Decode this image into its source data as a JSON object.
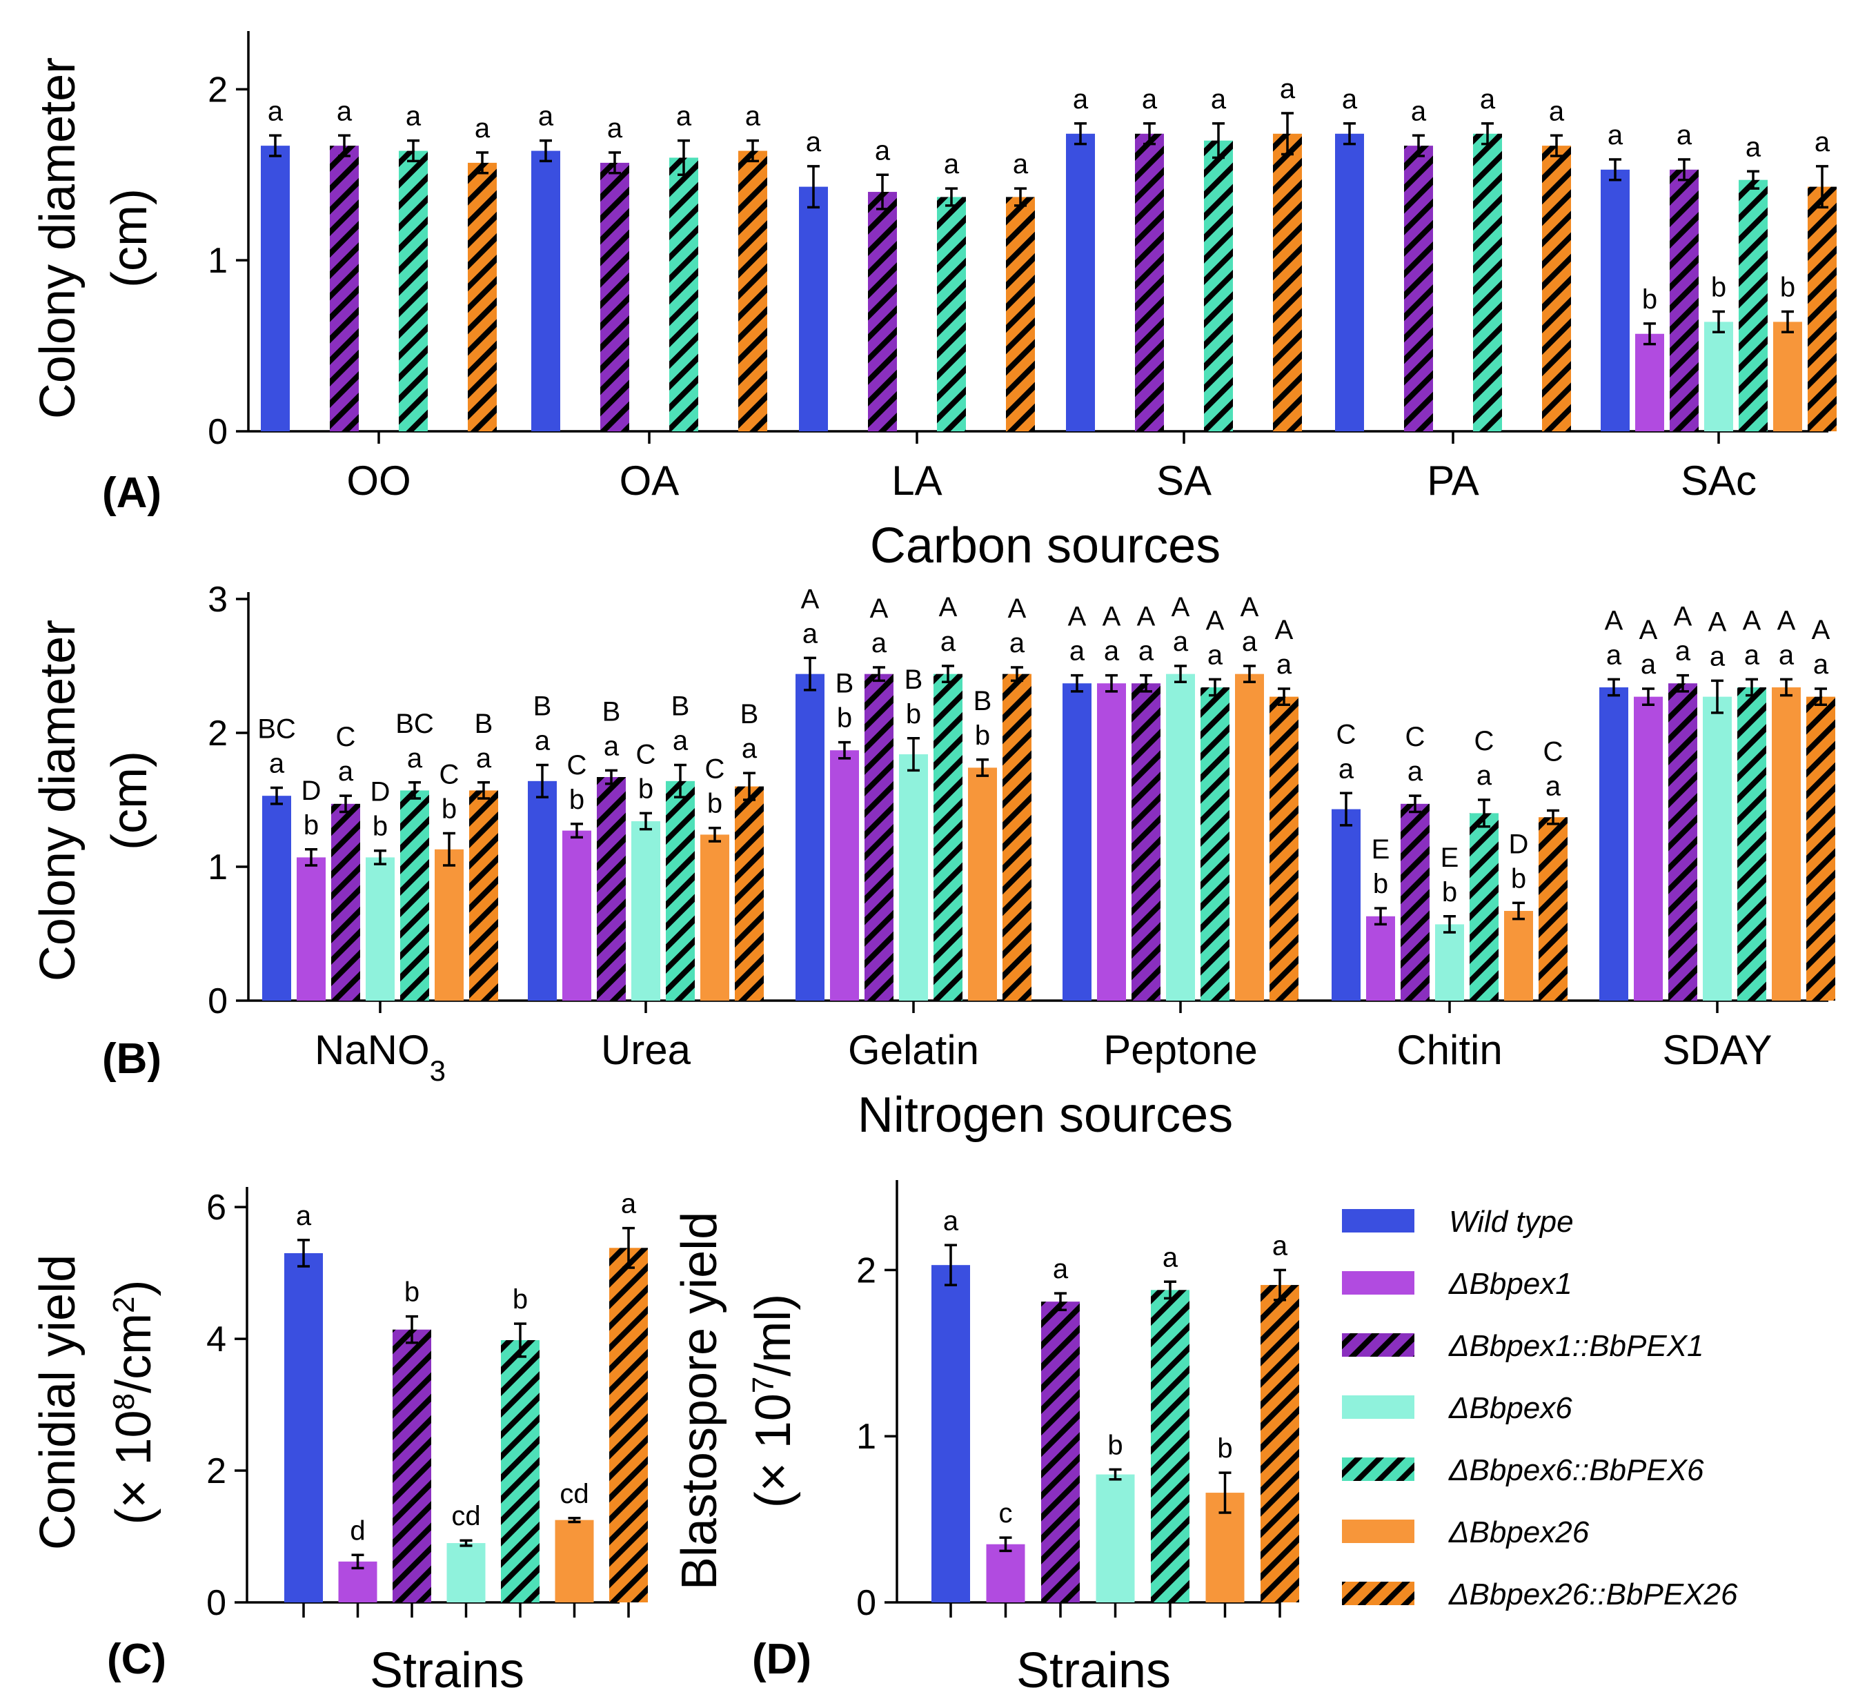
{
  "chart_data": [
    {
      "type": "bar",
      "panel": "(A)",
      "xlabel": "Carbon sources",
      "ylabel": [
        "Colony diameter",
        "(cm)"
      ],
      "ylim": [
        0,
        2.3
      ],
      "yticks": [
        "0",
        "1",
        "2"
      ],
      "categories": [
        "OO",
        "OA",
        "LA",
        "SA",
        "PA",
        "SAc"
      ],
      "series": [
        {
          "name": "Wild type",
          "values": [
            1.67,
            1.64,
            1.43,
            1.74,
            1.74,
            1.53
          ],
          "errors": [
            0.06,
            0.06,
            0.12,
            0.06,
            0.06,
            0.06
          ],
          "letters": [
            "a",
            "a",
            "a",
            "a",
            "a",
            "a"
          ]
        },
        {
          "name": "ΔBbpex1",
          "values": [
            null,
            null,
            null,
            null,
            null,
            0.57
          ],
          "errors": [
            null,
            null,
            null,
            null,
            null,
            0.06
          ],
          "letters": [
            "",
            "",
            "",
            "",
            "",
            "b"
          ]
        },
        {
          "name": "ΔBbpex1::BbPEX1",
          "values": [
            1.67,
            1.57,
            1.4,
            1.74,
            1.67,
            1.53
          ],
          "errors": [
            0.06,
            0.06,
            0.1,
            0.06,
            0.06,
            0.06
          ],
          "letters": [
            "a",
            "a",
            "a",
            "a",
            "a",
            "a"
          ]
        },
        {
          "name": "ΔBbpex6",
          "values": [
            null,
            null,
            null,
            null,
            null,
            0.64
          ],
          "errors": [
            null,
            null,
            null,
            null,
            null,
            0.06
          ],
          "letters": [
            "",
            "",
            "",
            "",
            "",
            "b"
          ]
        },
        {
          "name": "ΔBbpex6::BbPEX6",
          "values": [
            1.64,
            1.6,
            1.37,
            1.7,
            1.74,
            1.47
          ],
          "errors": [
            0.06,
            0.1,
            0.05,
            0.1,
            0.06,
            0.05
          ],
          "letters": [
            "a",
            "a",
            "a",
            "a",
            "a",
            "a"
          ]
        },
        {
          "name": "ΔBbpex26",
          "values": [
            null,
            null,
            null,
            null,
            null,
            0.64
          ],
          "errors": [
            null,
            null,
            null,
            null,
            null,
            0.06
          ],
          "letters": [
            "",
            "",
            "",
            "",
            "",
            "b"
          ]
        },
        {
          "name": "ΔBbpex26::BbPEX26",
          "values": [
            1.57,
            1.64,
            1.37,
            1.74,
            1.67,
            1.43
          ],
          "errors": [
            0.06,
            0.06,
            0.05,
            0.12,
            0.06,
            0.12
          ],
          "letters": [
            "a",
            "a",
            "a",
            "a",
            "a",
            "a"
          ]
        }
      ]
    },
    {
      "type": "bar",
      "panel": "(B)",
      "xlabel": "Nitrogen sources",
      "ylabel": [
        "Colony diameter",
        "(cm)"
      ],
      "ylim": [
        0,
        3
      ],
      "yticks": [
        "0",
        "1",
        "2",
        "3"
      ],
      "categories": [
        "NaNO",
        "Urea",
        "Gelatin",
        "Peptone",
        "Chitin",
        "SDAY"
      ],
      "category_subscripts": [
        "3",
        "",
        "",
        "",
        "",
        ""
      ],
      "series": [
        {
          "name": "Wild type",
          "values": [
            1.53,
            1.64,
            2.44,
            2.37,
            1.43,
            2.34
          ],
          "errors": [
            0.06,
            0.12,
            0.12,
            0.06,
            0.12,
            0.06
          ],
          "letters": [
            "a",
            "a",
            "a",
            "a",
            "a",
            "a"
          ],
          "upper_letters": [
            "BC",
            "B",
            "A",
            "A",
            "C",
            "A"
          ]
        },
        {
          "name": "ΔBbpex1",
          "values": [
            1.07,
            1.27,
            1.87,
            2.37,
            0.63,
            2.27
          ],
          "errors": [
            0.06,
            0.05,
            0.06,
            0.06,
            0.06,
            0.06
          ],
          "letters": [
            "b",
            "b",
            "b",
            "a",
            "b",
            "a"
          ],
          "upper_letters": [
            "D",
            "C",
            "B",
            "A",
            "E",
            "A"
          ]
        },
        {
          "name": "ΔBbpex1::BbPEX1",
          "values": [
            1.47,
            1.67,
            2.44,
            2.37,
            1.47,
            2.37
          ],
          "errors": [
            0.06,
            0.05,
            0.05,
            0.06,
            0.06,
            0.06
          ],
          "letters": [
            "a",
            "a",
            "a",
            "a",
            "a",
            "a"
          ],
          "upper_letters": [
            "C",
            "B",
            "A",
            "A",
            "C",
            "A"
          ]
        },
        {
          "name": "ΔBbpex6",
          "values": [
            1.07,
            1.34,
            1.84,
            2.44,
            0.57,
            2.27
          ],
          "errors": [
            0.05,
            0.06,
            0.12,
            0.06,
            0.06,
            0.12
          ],
          "letters": [
            "b",
            "b",
            "b",
            "a",
            "b",
            "a"
          ],
          "upper_letters": [
            "D",
            "C",
            "B",
            "A",
            "E",
            "A"
          ]
        },
        {
          "name": "ΔBbpex6::BbPEX6",
          "values": [
            1.57,
            1.64,
            2.44,
            2.34,
            1.4,
            2.34
          ],
          "errors": [
            0.06,
            0.12,
            0.06,
            0.06,
            0.1,
            0.06
          ],
          "letters": [
            "a",
            "a",
            "a",
            "a",
            "a",
            "a"
          ],
          "upper_letters": [
            "BC",
            "B",
            "A",
            "A",
            "C",
            "A"
          ]
        },
        {
          "name": "ΔBbpex26",
          "values": [
            1.13,
            1.24,
            1.74,
            2.44,
            0.67,
            2.34
          ],
          "errors": [
            0.12,
            0.05,
            0.06,
            0.06,
            0.06,
            0.06
          ],
          "letters": [
            "b",
            "b",
            "b",
            "a",
            "b",
            "a"
          ],
          "upper_letters": [
            "C",
            "C",
            "B",
            "A",
            "D",
            "A"
          ]
        },
        {
          "name": "ΔBbpex26::BbPEX26",
          "values": [
            1.57,
            1.6,
            2.44,
            2.27,
            1.37,
            2.27
          ],
          "errors": [
            0.06,
            0.1,
            0.05,
            0.06,
            0.05,
            0.06
          ],
          "letters": [
            "a",
            "a",
            "a",
            "a",
            "a",
            "a"
          ],
          "upper_letters": [
            "B",
            "B",
            "A",
            "A",
            "C",
            "A"
          ]
        }
      ]
    },
    {
      "type": "bar",
      "panel": "(C)",
      "xlabel": "Strains",
      "ylabel": [
        "Conidial yield",
        "(× 10",
        "8",
        "/cm",
        "2",
        ")"
      ],
      "ylim": [
        0,
        6.2
      ],
      "yticks": [
        "0",
        "2",
        "4",
        "6"
      ],
      "categories": [
        "Wild type",
        "ΔBbpex1",
        "ΔBbpex1::BbPEX1",
        "ΔBbpex6",
        "ΔBbpex6::BbPEX6",
        "ΔBbpex26",
        "ΔBbpex26::BbPEX26"
      ],
      "values": [
        5.3,
        0.62,
        4.14,
        0.9,
        3.98,
        1.25,
        5.38
      ],
      "errors": [
        0.2,
        0.1,
        0.2,
        0.04,
        0.25,
        0.03,
        0.3
      ],
      "letters": [
        "a",
        "d",
        "b",
        "cd",
        "b",
        "cd",
        "a"
      ]
    },
    {
      "type": "bar",
      "panel": "(D)",
      "xlabel": "Strains",
      "ylabel": [
        "Blastospore yield",
        "(× 10",
        "7",
        "/ml)"
      ],
      "ylim": [
        0,
        2.5
      ],
      "yticks": [
        "0",
        "1",
        "2"
      ],
      "categories": [
        "Wild type",
        "ΔBbpex1",
        "ΔBbpex1::BbPEX1",
        "ΔBbpex6",
        "ΔBbpex6::BbPEX6",
        "ΔBbpex26",
        "ΔBbpex26::BbPEX26"
      ],
      "values": [
        2.03,
        0.35,
        1.81,
        0.77,
        1.88,
        0.66,
        1.91
      ],
      "errors": [
        0.12,
        0.04,
        0.05,
        0.03,
        0.05,
        0.12,
        0.09
      ],
      "letters": [
        "a",
        "c",
        "a",
        "b",
        "a",
        "b",
        "a"
      ]
    }
  ],
  "legend": {
    "placement": "right of panel D",
    "entries": [
      {
        "label": "Wild type",
        "color": "#3a4fe0",
        "hatch": false
      },
      {
        "label": "ΔBbpex1",
        "color": "#b14be0",
        "hatch": false
      },
      {
        "label": "ΔBbpex1::BbPEX1",
        "color": "#8a2fbf",
        "hatch": true
      },
      {
        "label": "ΔBbpex6",
        "color": "#8ff2dc",
        "hatch": false
      },
      {
        "label": "ΔBbpex6::BbPEX6",
        "color": "#4ee0b8",
        "hatch": true
      },
      {
        "label": "ΔBbpex26",
        "color": "#f7963a",
        "hatch": false
      },
      {
        "label": "ΔBbpex26::BbPEX26",
        "color": "#f28a22",
        "hatch": true
      }
    ]
  }
}
